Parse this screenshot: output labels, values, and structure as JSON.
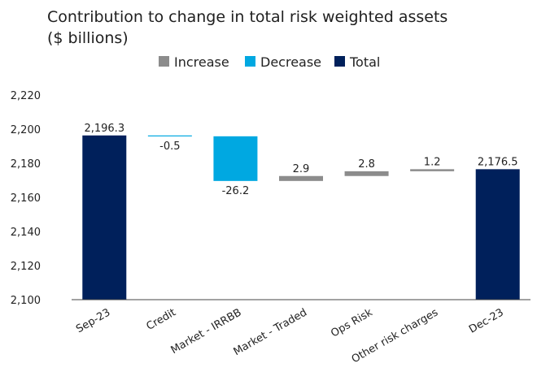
{
  "chart_data": {
    "type": "bar",
    "subtype": "waterfall",
    "title_lines": [
      "Contribution to change in total risk weighted assets",
      "($ billions)"
    ],
    "legend": [
      {
        "name": "Increase",
        "color": "#8c8c8c"
      },
      {
        "name": "Decrease",
        "color": "#00a8e1"
      },
      {
        "name": "Total",
        "color": "#00205b"
      }
    ],
    "legend_position": "top-center",
    "ylim": [
      2100,
      2220
    ],
    "yticks": [
      2100,
      2120,
      2140,
      2160,
      2180,
      2200,
      2220
    ],
    "ytick_labels": [
      "2,100",
      "2,120",
      "2,140",
      "2,160",
      "2,180",
      "2,200",
      "2,220"
    ],
    "grid": false,
    "bars": [
      {
        "category": "Sep-23",
        "kind": "total",
        "start": 2100,
        "end": 2196.3,
        "label": "2,196.3"
      },
      {
        "category": "Credit",
        "kind": "decrease",
        "start": 2196.3,
        "end": 2195.8,
        "label": "-0.5"
      },
      {
        "category": "Market - IRRBB",
        "kind": "decrease",
        "start": 2195.8,
        "end": 2169.6,
        "label": "-26.2"
      },
      {
        "category": "Market - Traded",
        "kind": "increase",
        "start": 2169.6,
        "end": 2172.5,
        "label": "2.9"
      },
      {
        "category": "Ops Risk",
        "kind": "increase",
        "start": 2172.5,
        "end": 2175.3,
        "label": "2.8"
      },
      {
        "category": "Other risk charges",
        "kind": "increase",
        "start": 2175.3,
        "end": 2176.5,
        "label": "1.2"
      },
      {
        "category": "Dec-23",
        "kind": "total",
        "start": 2100,
        "end": 2176.5,
        "label": "2,176.5"
      }
    ]
  }
}
